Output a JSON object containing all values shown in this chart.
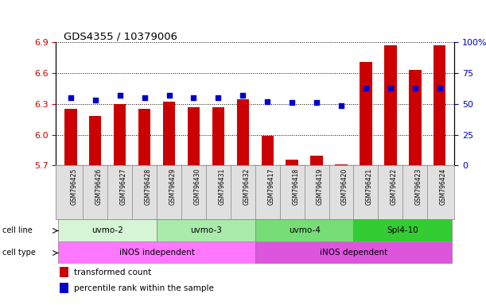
{
  "title": "GDS4355 / 10379006",
  "samples": [
    "GSM796425",
    "GSM796426",
    "GSM796427",
    "GSM796428",
    "GSM796429",
    "GSM796430",
    "GSM796431",
    "GSM796432",
    "GSM796417",
    "GSM796418",
    "GSM796419",
    "GSM796420",
    "GSM796421",
    "GSM796422",
    "GSM796423",
    "GSM796424"
  ],
  "bar_values": [
    6.25,
    6.18,
    6.3,
    6.25,
    6.32,
    6.27,
    6.27,
    6.35,
    5.99,
    5.76,
    5.8,
    5.71,
    6.71,
    6.87,
    6.63,
    6.87
  ],
  "dot_values": [
    55,
    53,
    57,
    55,
    57,
    55,
    55,
    57,
    52,
    51,
    51,
    49,
    63,
    63,
    63,
    63
  ],
  "ymin": 5.7,
  "ymax": 6.9,
  "yticks": [
    5.7,
    6.0,
    6.3,
    6.6,
    6.9
  ],
  "y2min": 0,
  "y2max": 100,
  "y2ticks": [
    0,
    25,
    50,
    75,
    100
  ],
  "bar_color": "#cc0000",
  "dot_color": "#0000cc",
  "cell_lines": [
    {
      "label": "uvmo-2",
      "start": 0,
      "end": 4,
      "color": "#d6f5d6"
    },
    {
      "label": "uvmo-3",
      "start": 4,
      "end": 8,
      "color": "#aaeaaa"
    },
    {
      "label": "uvmo-4",
      "start": 8,
      "end": 12,
      "color": "#77dd77"
    },
    {
      "label": "Spl4-10",
      "start": 12,
      "end": 16,
      "color": "#33cc33"
    }
  ],
  "cell_types": [
    {
      "label": "iNOS independent",
      "start": 0,
      "end": 8,
      "color": "#ff77ff"
    },
    {
      "label": "iNOS dependent",
      "start": 8,
      "end": 16,
      "color": "#dd55dd"
    }
  ],
  "legend_items": [
    {
      "label": "transformed count",
      "color": "#cc0000"
    },
    {
      "label": "percentile rank within the sample",
      "color": "#0000cc"
    }
  ],
  "sample_bg_color": "#e0e0e0",
  "label_left_text": [
    "cell line",
    "cell type"
  ],
  "bar_width": 0.5
}
